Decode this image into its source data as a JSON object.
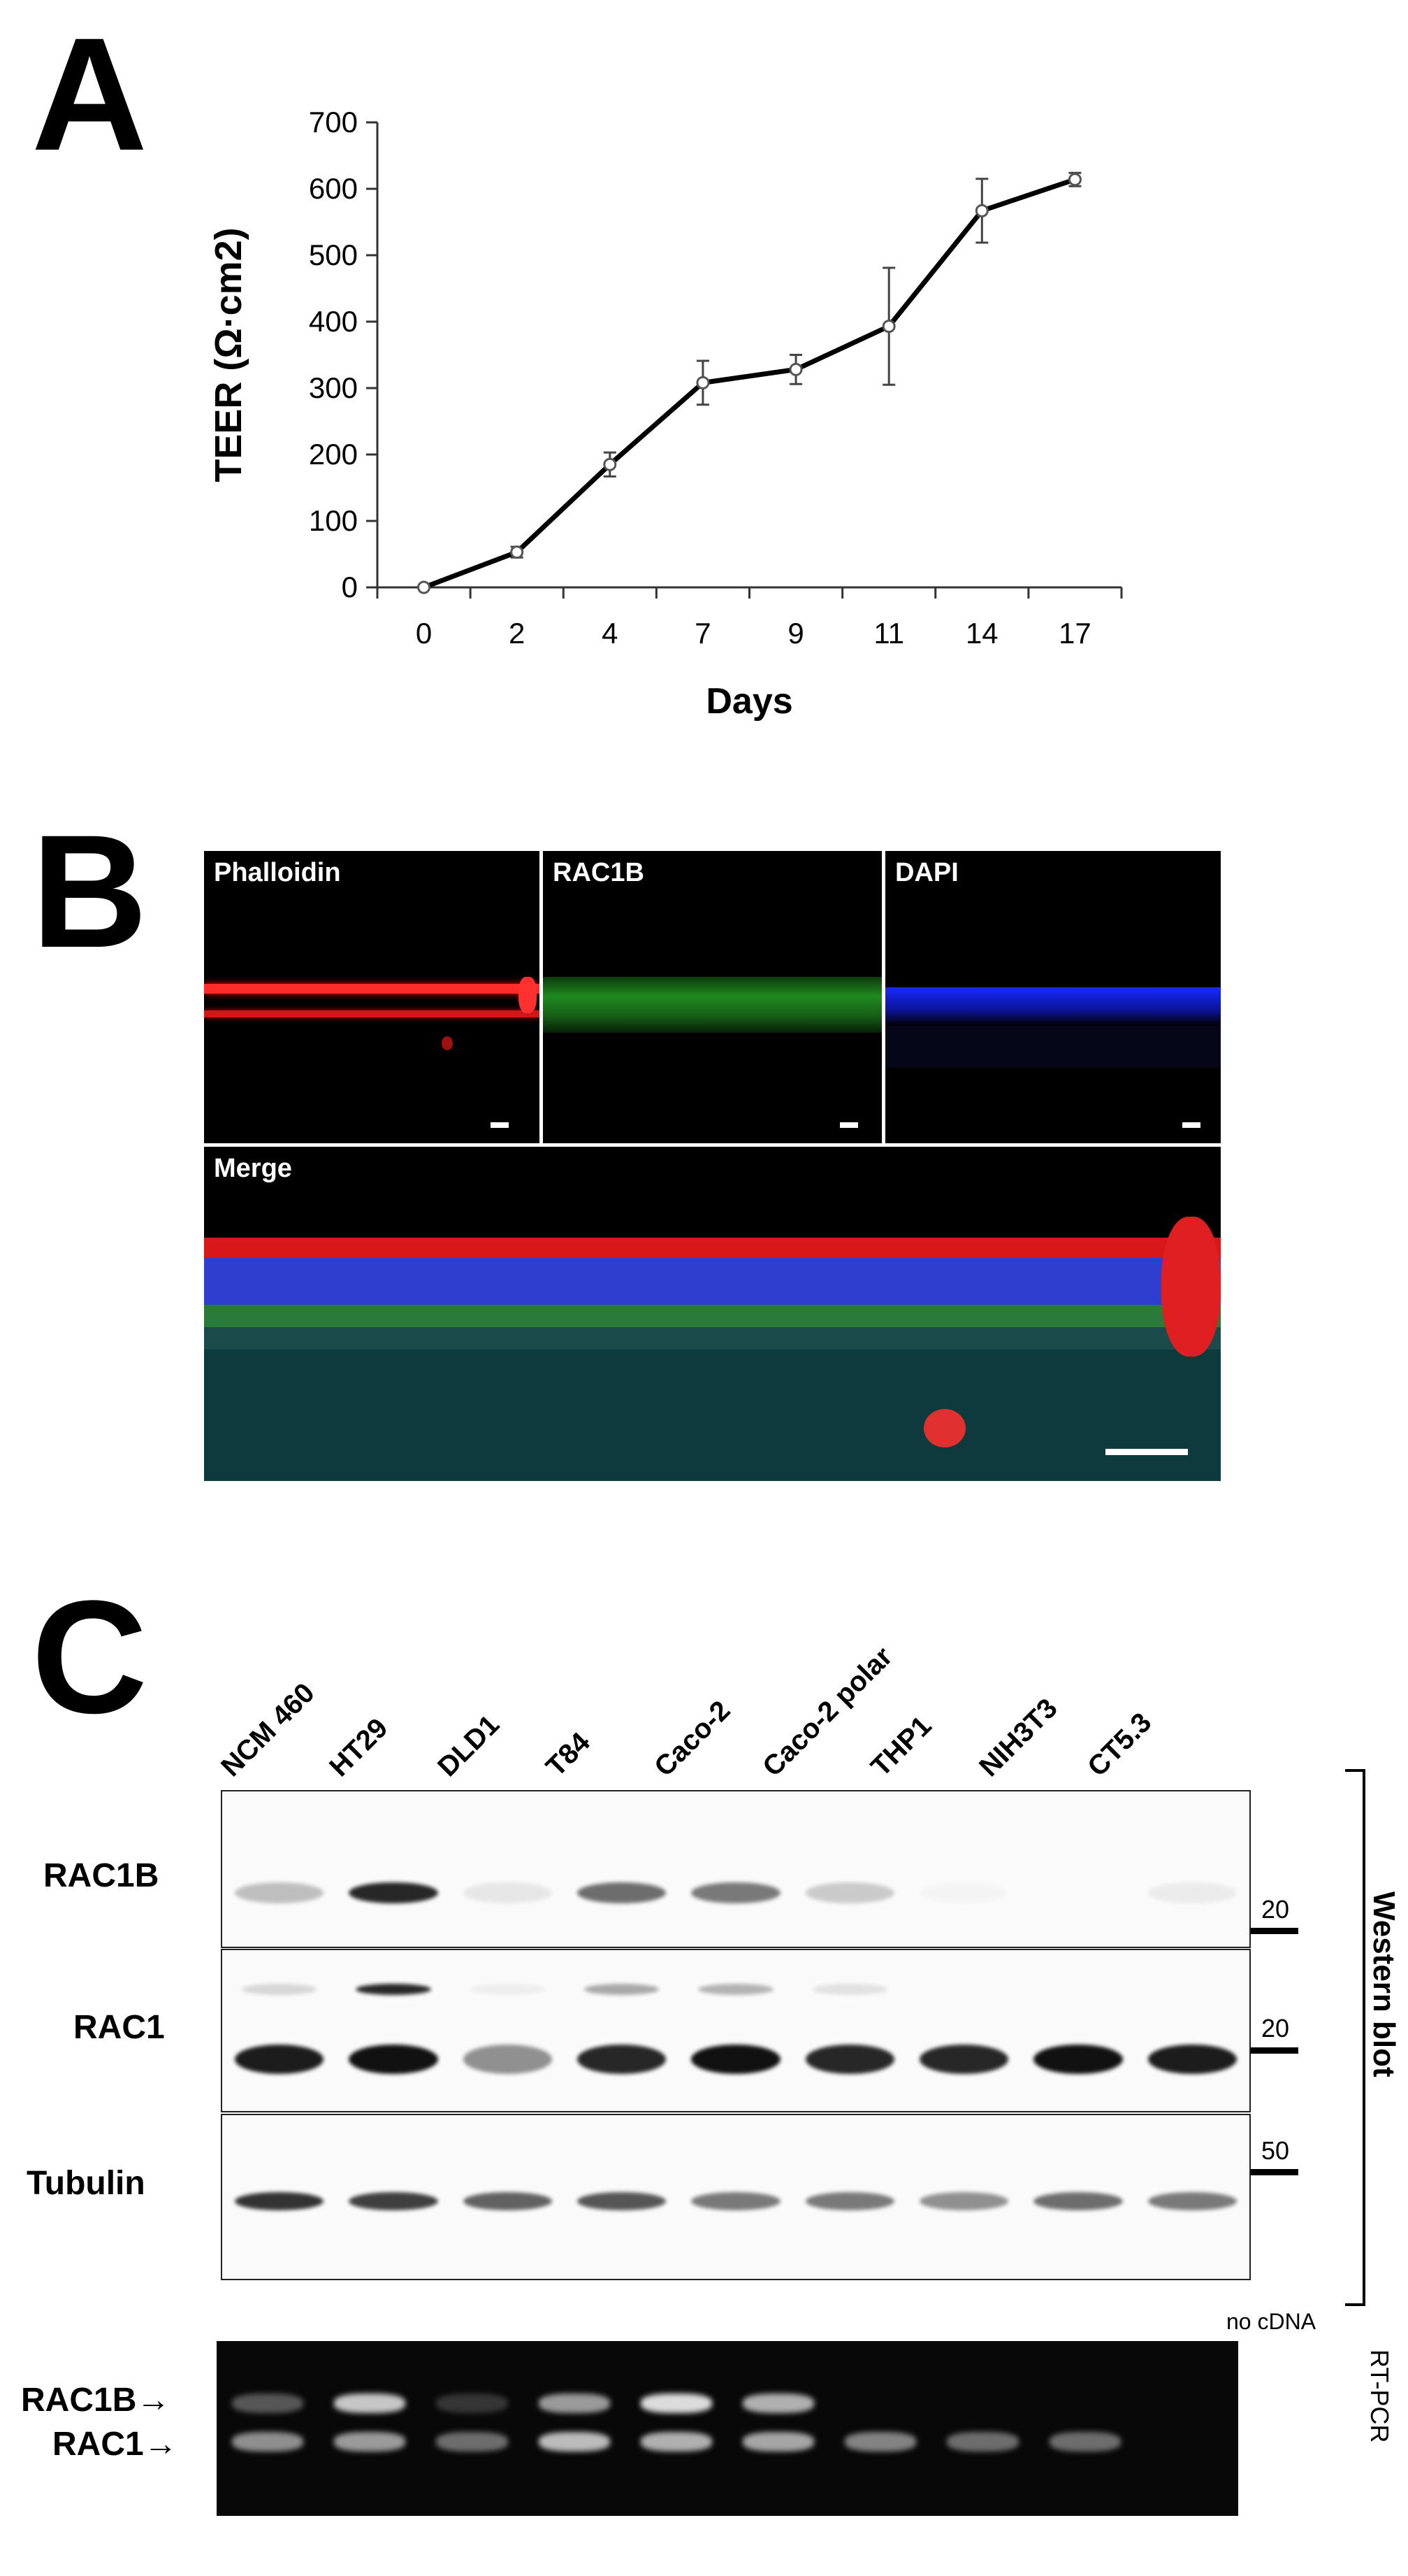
{
  "panels": {
    "a": "A",
    "b": "B",
    "c": "C"
  },
  "chart_data": {
    "type": "line",
    "title": "",
    "xlabel": "Days",
    "ylabel": "TEER (Ω·cm2)",
    "categories": [
      "0",
      "2",
      "4",
      "7",
      "9",
      "11",
      "14",
      "17"
    ],
    "values": [
      0,
      53,
      185,
      308,
      328,
      393,
      567,
      614
    ],
    "errors": [
      0,
      8,
      18,
      33,
      22,
      88,
      48,
      10
    ],
    "ylim": [
      0,
      700
    ],
    "yticks": [
      "0",
      "100",
      "200",
      "300",
      "400",
      "500",
      "600",
      "700"
    ],
    "grid": false,
    "line_color": "#000000",
    "marker_color": "#ffffff"
  },
  "microscopy": {
    "phalloidin": "Phalloidin",
    "rac1b": "RAC1B",
    "dapi": "DAPI",
    "merge": "Merge",
    "colors": {
      "phalloidin": "#ff2020",
      "rac1b": "#30c030",
      "dapi": "#2a40ff"
    }
  },
  "western": {
    "lanes": [
      "NCM 460",
      "HT29",
      "DLD1",
      "T84",
      "Caco-2",
      "Caco-2 polar",
      "THP1",
      "NIH3T3",
      "CT5.3"
    ],
    "rows": [
      {
        "label": "RAC1B",
        "marker": "20",
        "intensity": [
          0.25,
          0.9,
          0.08,
          0.6,
          0.55,
          0.2,
          0.02,
          0.0,
          0.06
        ]
      },
      {
        "label": "RAC1",
        "marker": "20",
        "intensity": [
          0.95,
          1.0,
          0.45,
          0.9,
          1.0,
          0.9,
          0.9,
          1.0,
          0.95
        ]
      },
      {
        "label": "Tubulin",
        "marker": "50",
        "intensity": [
          0.85,
          0.8,
          0.65,
          0.7,
          0.55,
          0.55,
          0.45,
          0.6,
          0.55
        ]
      }
    ],
    "side_label": "Western blot"
  },
  "rtpcr": {
    "labels": [
      "RAC1B",
      "RAC1"
    ],
    "arrow": "→",
    "no_cdna": "no cDNA",
    "side_label": "RT-PCR",
    "rac1b_intensity": [
      0.35,
      0.85,
      0.2,
      0.65,
      0.95,
      0.75,
      0.0,
      0.0,
      0.0,
      0.0
    ],
    "rac1_intensity": [
      0.6,
      0.65,
      0.45,
      0.8,
      0.75,
      0.7,
      0.55,
      0.45,
      0.45,
      0.0
    ]
  }
}
